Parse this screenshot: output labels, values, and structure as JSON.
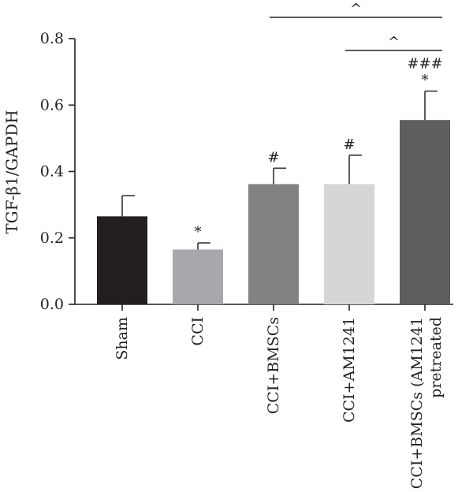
{
  "chart_data": {
    "type": "bar",
    "title": "",
    "xlabel": "",
    "ylabel": "TGF-β1/GAPDH",
    "ylim": [
      0,
      0.8
    ],
    "yticks": [
      "0.0",
      "0.2",
      "0.4",
      "0.6",
      "0.8"
    ],
    "grid": false,
    "categories": [
      [
        "Sham"
      ],
      [
        "CCI"
      ],
      [
        "CCI+BMSCs"
      ],
      [
        "CCI+AM1241"
      ],
      [
        "CCI+BMSCs (AM1241",
        "pretreated"
      ]
    ],
    "values": [
      0.265,
      0.165,
      0.362,
      0.362,
      0.555
    ],
    "errors": [
      0.062,
      0.02,
      0.048,
      0.087,
      0.087
    ],
    "colors": [
      "#231f20",
      "#a6a8ab",
      "#828282",
      "#d6d6d6",
      "#5e5e5e"
    ],
    "annotations": [
      [
        "",
        ""
      ],
      [
        "*",
        ""
      ],
      [
        "#",
        ""
      ],
      [
        "#",
        ""
      ],
      [
        "*",
        "###"
      ]
    ],
    "significance_brackets": [
      {
        "from": 2,
        "to": 4,
        "label": "^"
      },
      {
        "from": 3,
        "to": 4,
        "label": "^"
      }
    ]
  }
}
